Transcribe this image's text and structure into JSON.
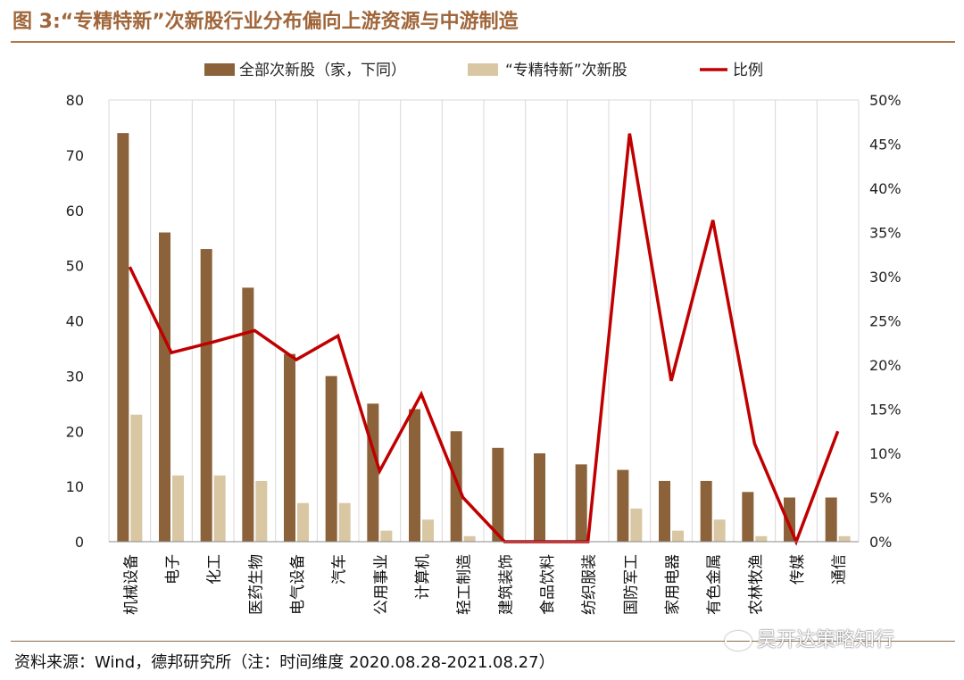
{
  "title": "图 3:“专精特新”次新股行业分布偏向上游资源与中游制造",
  "source": "资料来源：Wind，德邦研究所（注：时间维度 2020.08.28-2021.08.27）",
  "watermark": "吴开达策略知行",
  "colors": {
    "title": "#a0663a",
    "bar_all": "#8b6239",
    "bar_zj": "#d9c7a3",
    "line": "#c00000",
    "grid": "#d8d8d8"
  },
  "chart_data": {
    "type": "bar",
    "categories": [
      "机械设备",
      "电子",
      "化工",
      "医药生物",
      "电气设备",
      "汽车",
      "公用事业",
      "计算机",
      "轻工制造",
      "建筑装饰",
      "食品饮料",
      "纺织服装",
      "国防军工",
      "家用电器",
      "有色金属",
      "农林牧渔",
      "传媒",
      "通信"
    ],
    "series": [
      {
        "name": "全部次新股（家，下同）",
        "type": "bar",
        "axis": "left",
        "color": "#8b6239",
        "values": [
          74,
          56,
          53,
          46,
          34,
          30,
          25,
          24,
          20,
          17,
          16,
          14,
          13,
          11,
          11,
          9,
          8,
          8
        ]
      },
      {
        "name": "“专精特新”次新股",
        "type": "bar",
        "axis": "left",
        "color": "#d9c7a3",
        "values": [
          23,
          12,
          12,
          11,
          7,
          7,
          2,
          4,
          1,
          0,
          0,
          0,
          6,
          2,
          4,
          1,
          0,
          1
        ]
      },
      {
        "name": "比例",
        "type": "line",
        "axis": "right",
        "color": "#c00000",
        "values": [
          31.1,
          21.4,
          22.6,
          23.9,
          20.6,
          23.3,
          8.0,
          16.7,
          5.0,
          0,
          0,
          0,
          46.2,
          18.2,
          36.4,
          11.1,
          0,
          12.5
        ]
      }
    ],
    "y_left": {
      "min": 0,
      "max": 80,
      "ticks": [
        "0",
        "10",
        "20",
        "30",
        "40",
        "50",
        "60",
        "70",
        "80"
      ]
    },
    "y_right": {
      "min": 0,
      "max": 50,
      "ticks": [
        "0%",
        "5%",
        "10%",
        "15%",
        "20%",
        "25%",
        "30%",
        "35%",
        "40%",
        "45%",
        "50%"
      ]
    },
    "grid": "vertical",
    "legend_placement": "top"
  }
}
